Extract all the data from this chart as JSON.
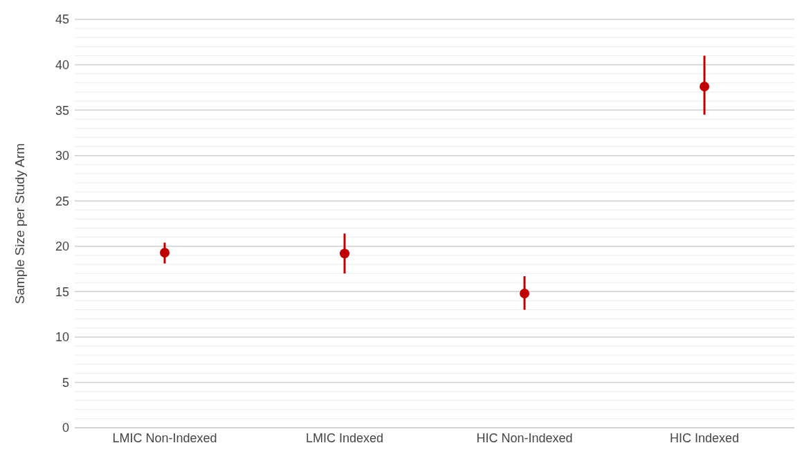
{
  "chart_data": {
    "type": "scatter",
    "ylabel": "Sample Size per Study Arm",
    "categories": [
      "LMIC Non-Indexed",
      "LMIC Indexed",
      "HIC Non-Indexed",
      "HIC Indexed"
    ],
    "values": [
      19.3,
      19.2,
      14.8,
      37.6
    ],
    "errors": [
      [
        18.1,
        20.4
      ],
      [
        17.0,
        21.4
      ],
      [
        13.0,
        16.7
      ],
      [
        34.5,
        41.0
      ]
    ],
    "color": "#c00000",
    "marker": "circle",
    "ylim": [
      0,
      45
    ],
    "yticks": [
      0,
      {
        "value": 1,
        "label": null
      },
      {
        "value": 2,
        "label": null
      },
      {
        "value": 3,
        "label": null
      },
      {
        "value": 4,
        "label": null
      },
      5,
      {
        "value": 6,
        "label": null
      },
      {
        "value": 7,
        "label": null
      },
      {
        "value": 8,
        "label": null
      },
      {
        "value": 9,
        "label": null
      },
      10,
      {
        "value": 11,
        "label": null
      },
      {
        "value": 12,
        "label": null
      },
      {
        "value": 13,
        "label": null
      },
      {
        "value": 14,
        "label": null
      },
      15,
      {
        "value": 16,
        "label": null
      },
      {
        "value": 17,
        "label": null
      },
      {
        "value": 18,
        "label": null
      },
      {
        "value": 19,
        "label": null
      },
      20,
      {
        "value": 21,
        "label": null
      },
      {
        "value": 22,
        "label": null
      },
      {
        "value": 23,
        "label": null
      },
      {
        "value": 24,
        "label": null
      },
      25,
      {
        "value": 26,
        "label": null
      },
      {
        "value": 27,
        "label": null
      },
      {
        "value": 28,
        "label": null
      },
      {
        "value": 29,
        "label": null
      },
      30,
      {
        "value": 31,
        "label": null
      },
      {
        "value": 32,
        "label": null
      },
      {
        "value": 33,
        "label": null
      },
      {
        "value": 34,
        "label": null
      },
      35,
      {
        "value": 36,
        "label": null
      },
      {
        "value": 37,
        "label": null
      },
      {
        "value": 38,
        "label": null
      },
      {
        "value": 39,
        "label": null
      },
      40,
      {
        "value": 41,
        "label": null
      },
      {
        "value": 42,
        "label": null
      },
      {
        "value": 43,
        "label": null
      },
      {
        "value": 44,
        "label": null
      },
      45
    ],
    "grid": "y"
  }
}
